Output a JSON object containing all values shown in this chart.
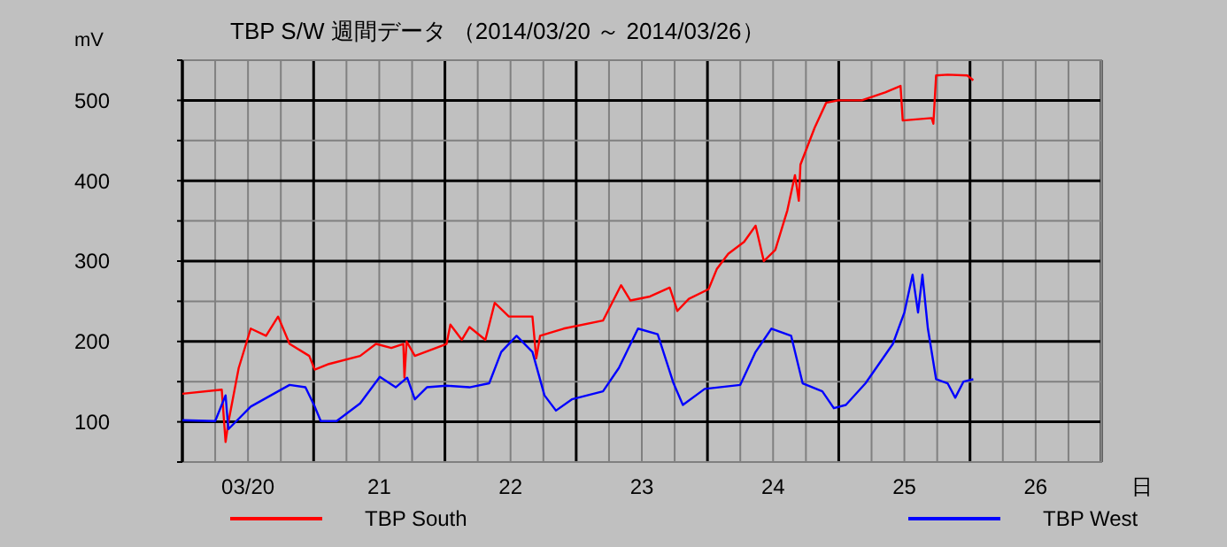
{
  "chart_data": {
    "type": "line",
    "title": "TBP S/W  週間データ （2014/03/20 ～ 2014/03/26）",
    "xlabel": "日",
    "ylabel": "mV",
    "xlim": [
      "2014-03-20T00:00",
      "2014-03-27T00:00"
    ],
    "ylim": [
      50,
      550
    ],
    "xticks": [
      {
        "value": "2014-03-20T00:00",
        "label": null
      },
      {
        "value": "2014-03-20T06:00",
        "label": null
      },
      {
        "value": "2014-03-20T12:00",
        "label": "03/20"
      },
      {
        "value": "2014-03-20T18:00",
        "label": null
      },
      {
        "value": "2014-03-21T00:00",
        "label": null
      },
      {
        "value": "2014-03-21T06:00",
        "label": null
      },
      {
        "value": "2014-03-21T12:00",
        "label": "21"
      },
      {
        "value": "2014-03-21T18:00",
        "label": null
      },
      {
        "value": "2014-03-22T00:00",
        "label": null
      },
      {
        "value": "2014-03-22T06:00",
        "label": null
      },
      {
        "value": "2014-03-22T12:00",
        "label": "22"
      },
      {
        "value": "2014-03-22T18:00",
        "label": null
      },
      {
        "value": "2014-03-23T00:00",
        "label": null
      },
      {
        "value": "2014-03-23T06:00",
        "label": null
      },
      {
        "value": "2014-03-23T12:00",
        "label": "23"
      },
      {
        "value": "2014-03-23T18:00",
        "label": null
      },
      {
        "value": "2014-03-24T00:00",
        "label": null
      },
      {
        "value": "2014-03-24T06:00",
        "label": null
      },
      {
        "value": "2014-03-24T12:00",
        "label": "24"
      },
      {
        "value": "2014-03-24T18:00",
        "label": null
      },
      {
        "value": "2014-03-25T00:00",
        "label": null
      },
      {
        "value": "2014-03-25T06:00",
        "label": null
      },
      {
        "value": "2014-03-25T12:00",
        "label": "25"
      },
      {
        "value": "2014-03-25T18:00",
        "label": null
      },
      {
        "value": "2014-03-26T00:00",
        "label": null
      },
      {
        "value": "2014-03-26T06:00",
        "label": null
      },
      {
        "value": "2014-03-26T12:00",
        "label": "26"
      },
      {
        "value": "2014-03-26T18:00",
        "label": null
      },
      {
        "value": "2014-03-27T00:00",
        "label": null
      }
    ],
    "yticks": [
      {
        "value": 50,
        "label": null
      },
      100,
      {
        "value": 150,
        "label": null
      },
      200,
      {
        "value": 250,
        "label": null
      },
      300,
      {
        "value": 350,
        "label": null
      },
      400,
      {
        "value": 450,
        "label": null
      },
      500,
      {
        "value": 550,
        "label": null
      }
    ],
    "grid": true,
    "legend": "bottom",
    "marker": "none",
    "line_style": "solid",
    "series": [
      {
        "name": "TBP South",
        "color": "#ff0000",
        "x": [
          "2014-03-20T00:00",
          "2014-03-20T07:12",
          "2014-03-20T07:54",
          "2014-03-20T08:24",
          "2014-03-20T10:18",
          "2014-03-20T12:30",
          "2014-03-20T15:18",
          "2014-03-20T17:30",
          "2014-03-20T19:36",
          "2014-03-20T23:12",
          "2014-03-21T00:12",
          "2014-03-21T02:48",
          "2014-03-21T08:30",
          "2014-03-21T11:24",
          "2014-03-21T14:12",
          "2014-03-21T16:24",
          "2014-03-21T16:36",
          "2014-03-21T17:00",
          "2014-03-21T18:30",
          "2014-03-22T00:18",
          "2014-03-22T01:00",
          "2014-03-22T03:06",
          "2014-03-22T04:30",
          "2014-03-22T07:24",
          "2014-03-22T09:06",
          "2014-03-22T11:42",
          "2014-03-22T16:00",
          "2014-03-22T16:42",
          "2014-03-22T17:24",
          "2014-03-22T21:42",
          "2014-03-23T04:54",
          "2014-03-23T08:12",
          "2014-03-23T09:54",
          "2014-03-23T13:30",
          "2014-03-23T17:06",
          "2014-03-23T18:30",
          "2014-03-23T20:36",
          "2014-03-24T00:12",
          "2014-03-24T01:42",
          "2014-03-24T03:48",
          "2014-03-24T06:42",
          "2014-03-24T08:48",
          "2014-03-24T10:18",
          "2014-03-24T12:24",
          "2014-03-24T14:36",
          "2014-03-24T16:00",
          "2014-03-24T16:42",
          "2014-03-24T17:00",
          "2014-03-24T19:36",
          "2014-03-24T21:42",
          "2014-03-24T23:54",
          "2014-03-25T04:12",
          "2014-03-25T08:30",
          "2014-03-25T11:18",
          "2014-03-25T11:42",
          "2014-03-25T17:00",
          "2014-03-25T17:18",
          "2014-03-25T17:48",
          "2014-03-25T19:54",
          "2014-03-25T23:30",
          "2014-03-26T00:36"
        ],
        "values": [
          135,
          140,
          75,
          99,
          167,
          216,
          207,
          231,
          197,
          182,
          165,
          172,
          182,
          197,
          192,
          197,
          155,
          200,
          182,
          197,
          221,
          202,
          218,
          202,
          248,
          231,
          231,
          179,
          207,
          216,
          226,
          270,
          251,
          256,
          267,
          238,
          253,
          265,
          290,
          309,
          324,
          344,
          300,
          314,
          363,
          407,
          375,
          420,
          466,
          497,
          500,
          500,
          510,
          518,
          475,
          478,
          471,
          531,
          532,
          531,
          525
        ]
      },
      {
        "name": "TBP West",
        "color": "#0000ff",
        "x": [
          "2014-03-20T00:00",
          "2014-03-20T06:00",
          "2014-03-20T07:54",
          "2014-03-20T08:24",
          "2014-03-20T09:36",
          "2014-03-20T12:30",
          "2014-03-20T19:36",
          "2014-03-20T22:30",
          "2014-03-21T00:12",
          "2014-03-21T01:18",
          "2014-03-21T04:12",
          "2014-03-21T08:30",
          "2014-03-21T12:06",
          "2014-03-21T15:00",
          "2014-03-21T17:06",
          "2014-03-21T18:30",
          "2014-03-21T20:42",
          "2014-03-22T00:18",
          "2014-03-22T04:30",
          "2014-03-22T08:06",
          "2014-03-22T10:18",
          "2014-03-22T13:06",
          "2014-03-22T16:00",
          "2014-03-22T18:12",
          "2014-03-22T20:18",
          "2014-03-22T23:12",
          "2014-03-23T04:54",
          "2014-03-23T07:48",
          "2014-03-23T11:18",
          "2014-03-23T14:54",
          "2014-03-23T17:48",
          "2014-03-23T19:30",
          "2014-03-23T23:30",
          "2014-03-24T06:00",
          "2014-03-24T08:48",
          "2014-03-24T11:42",
          "2014-03-24T15:18",
          "2014-03-24T17:24",
          "2014-03-24T21:00",
          "2014-03-24T23:06",
          "2014-03-25T01:18",
          "2014-03-25T04:54",
          "2014-03-25T09:54",
          "2014-03-25T12:00",
          "2014-03-25T13:30",
          "2014-03-25T14:30",
          "2014-03-25T15:18",
          "2014-03-25T16:18",
          "2014-03-25T17:48",
          "2014-03-25T19:54",
          "2014-03-25T21:18",
          "2014-03-25T22:48",
          "2014-03-26T00:36"
        ],
        "values": [
          102,
          101,
          133,
          91,
          99,
          119,
          146,
          143,
          119,
          101,
          101,
          123,
          156,
          143,
          155,
          128,
          143,
          145,
          143,
          148,
          187,
          207,
          187,
          133,
          114,
          128,
          138,
          167,
          216,
          209,
          148,
          121,
          141,
          146,
          187,
          216,
          207,
          148,
          138,
          117,
          121,
          148,
          197,
          236,
          283,
          236,
          283,
          216,
          153,
          148,
          130,
          150,
          153
        ]
      }
    ]
  }
}
